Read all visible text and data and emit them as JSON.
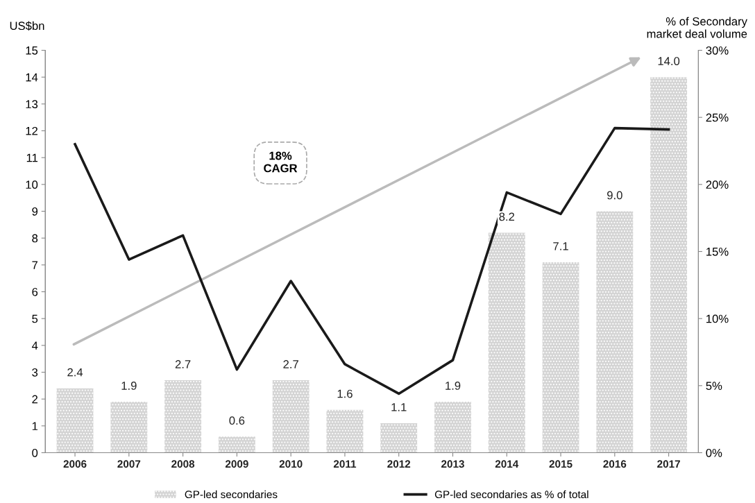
{
  "chart_data": {
    "type": "bar",
    "categories": [
      "2006",
      "2007",
      "2008",
      "2009",
      "2010",
      "2011",
      "2012",
      "2013",
      "2014",
      "2015",
      "2016",
      "2017"
    ],
    "series": [
      {
        "name": "GP-led secondaries",
        "color": "#d4d4d4",
        "values": [
          2.4,
          1.9,
          2.7,
          0.6,
          2.7,
          1.6,
          1.1,
          1.9,
          8.2,
          7.1,
          9.0,
          14.0
        ],
        "value_labels": [
          "2.4",
          "1.9",
          "2.7",
          "0.6",
          "2.7",
          "1.6",
          "1.1",
          "1.9",
          "8.2",
          "7.1",
          "9.0",
          "14.0"
        ]
      },
      {
        "name": "GP-led secondaries as % of total",
        "type": "line",
        "axis": "y2",
        "color": "#1a1a1a",
        "values": [
          23.0,
          14.4,
          16.2,
          6.2,
          12.8,
          6.6,
          4.4,
          6.9,
          19.4,
          17.8,
          24.2,
          24.1
        ]
      }
    ],
    "ylabel": "US$bn",
    "y2label": "% of Secondary\nmarket deal volume",
    "ylim": [
      0,
      15
    ],
    "yticks": [
      0,
      1,
      2,
      3,
      4,
      5,
      6,
      7,
      8,
      9,
      10,
      11,
      12,
      13,
      14,
      15
    ],
    "y2lim": [
      0,
      30
    ],
    "y2ticks": [
      {
        "value": 0,
        "label": "0%"
      },
      {
        "value": 5,
        "label": "5%"
      },
      {
        "value": 10,
        "label": "10%"
      },
      {
        "value": 15,
        "label": "15%"
      },
      {
        "value": 20,
        "label": "20%"
      },
      {
        "value": 25,
        "label": "25%"
      },
      {
        "value": 30,
        "label": "30%"
      }
    ],
    "annotations": [
      "18%\nCAGR"
    ],
    "legend": "bottom",
    "grid": false,
    "marker": "none",
    "line_style": "solid"
  }
}
